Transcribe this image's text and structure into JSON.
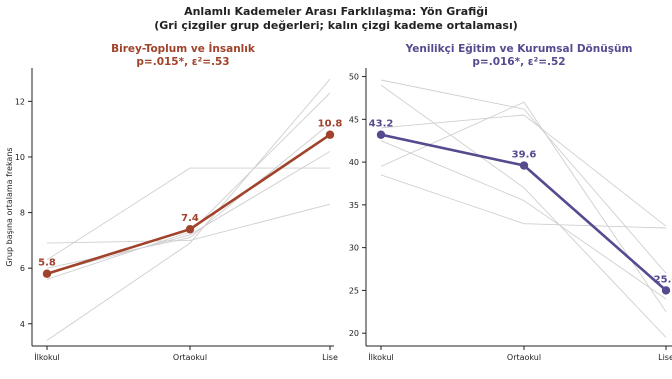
{
  "figure": {
    "title_line1": "Anlamlı Kademeler Arası Farklılaşma: Yön Grafiği",
    "title_line2": "(Gri çizgiler grup değerleri; kalın çizgi kademe ortalaması)"
  },
  "chart_data": [
    {
      "type": "line",
      "title": "Birey-Toplum ve İnsanlık",
      "subtitle": "p=.015*, ε²=.53",
      "ylabel": "Grup başına ortalama frekans",
      "xlabel": "",
      "categories": [
        "İlkokul",
        "Ortaokul",
        "Lise"
      ],
      "ylim": [
        3.2,
        13.2
      ],
      "yticks": [
        4,
        6,
        8,
        10,
        12
      ],
      "accent_color": "#a0432a",
      "grid": false,
      "mean_series": {
        "values": [
          5.8,
          7.4,
          10.8
        ],
        "labels": [
          "5.8",
          "7.4",
          "10.8"
        ]
      },
      "group_series": [
        {
          "values": [
            3.4,
            6.9,
            12.8
          ]
        },
        {
          "values": [
            5.6,
            7.3,
            12.3
          ]
        },
        {
          "values": [
            6.0,
            7.1,
            11.2
          ]
        },
        {
          "values": [
            6.3,
            9.6,
            9.6
          ]
        },
        {
          "values": [
            6.9,
            7.0,
            8.3
          ]
        },
        {
          "values": [
            5.8,
            7.2,
            10.2
          ]
        }
      ]
    },
    {
      "type": "line",
      "title": "Yenilikçi Eğitim ve Kurumsal Dönüşüm",
      "subtitle": "p=.016*, ε²=.52",
      "ylabel": "",
      "xlabel": "",
      "categories": [
        "İlkokul",
        "Ortaokul",
        "Lise"
      ],
      "ylim": [
        18.5,
        51
      ],
      "yticks": [
        20,
        25,
        30,
        35,
        40,
        45,
        50
      ],
      "accent_color": "#574a8f",
      "grid": false,
      "mean_series": {
        "values": [
          43.2,
          39.6,
          25.0
        ],
        "labels": [
          "43.2",
          "39.6",
          "25.0"
        ]
      },
      "group_series": [
        {
          "values": [
            49.6,
            46.2,
            27.0
          ]
        },
        {
          "values": [
            49.0,
            37.0,
            19.5
          ]
        },
        {
          "values": [
            39.5,
            47.0,
            22.5
          ]
        },
        {
          "values": [
            38.5,
            32.8,
            32.3
          ]
        },
        {
          "values": [
            42.5,
            35.5,
            24.0
          ]
        },
        {
          "values": [
            44.0,
            45.5,
            32.5
          ]
        }
      ]
    }
  ]
}
